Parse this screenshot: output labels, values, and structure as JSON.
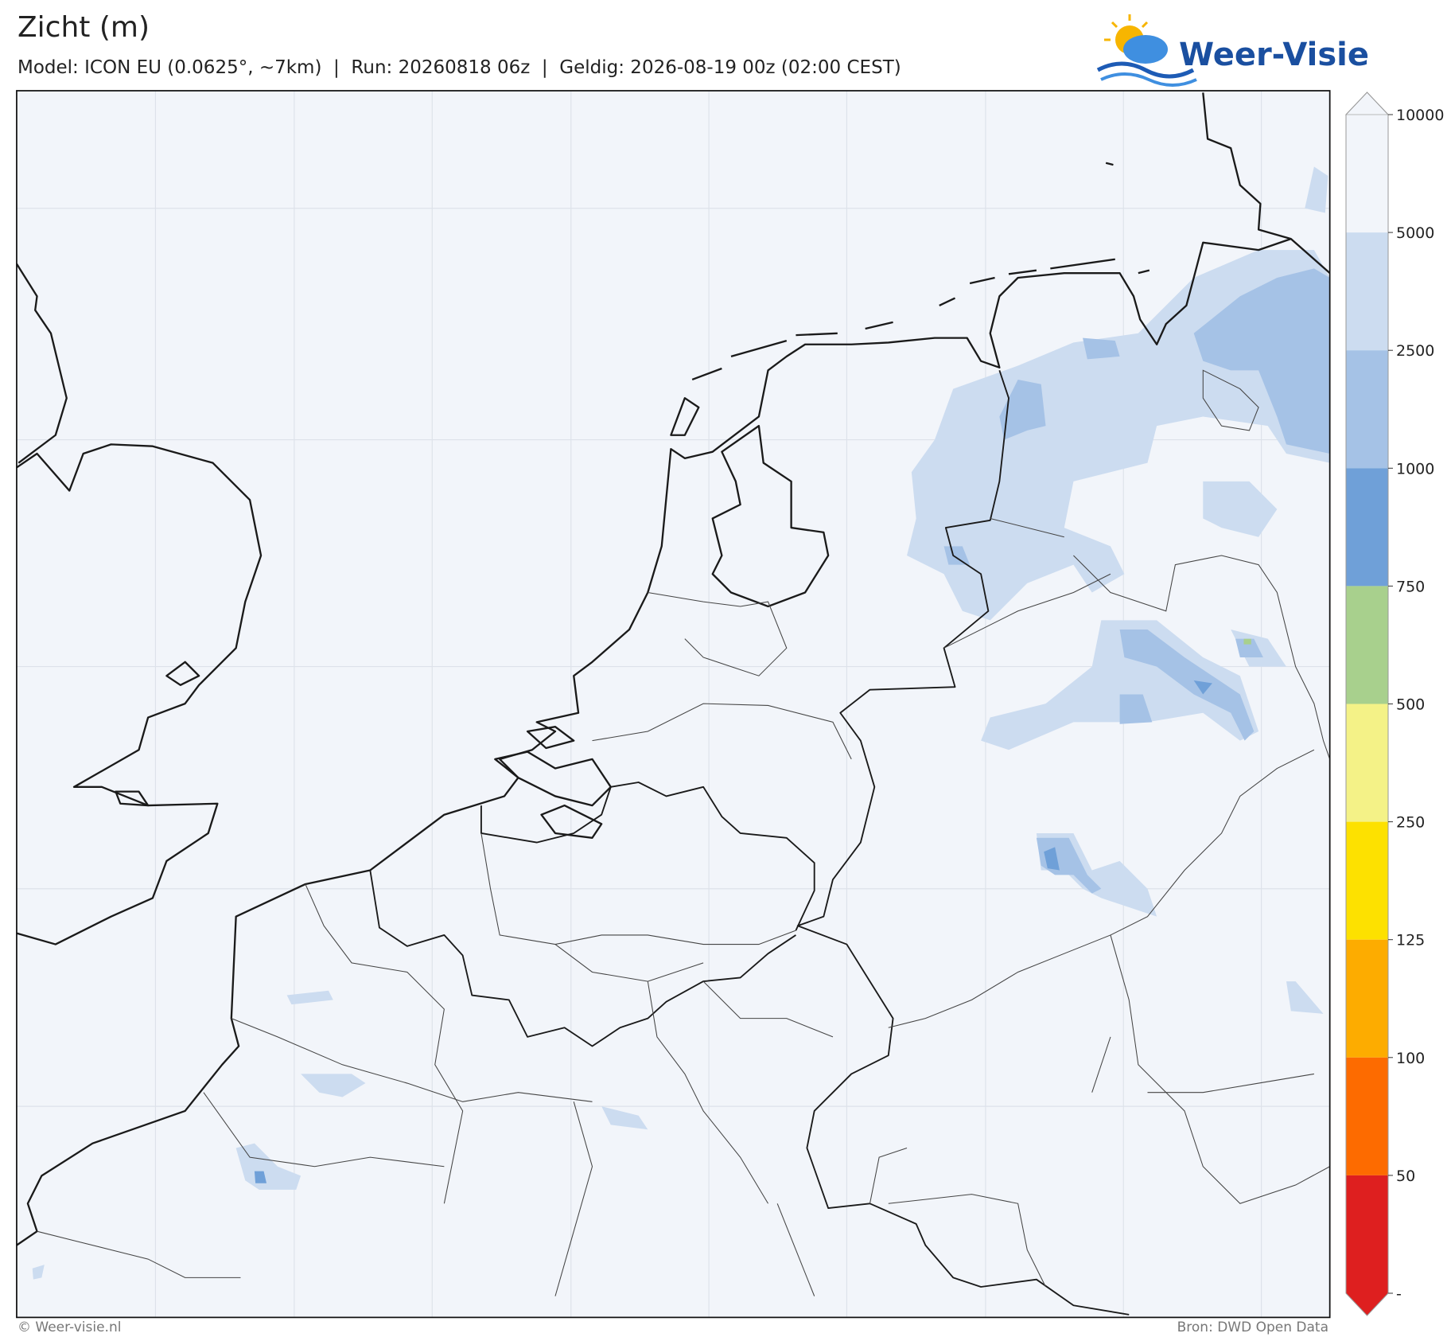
{
  "header": {
    "title": "Zicht (m)",
    "subtitle": "Model: ICON EU (0.0625°, ~7km)  |  Run: 20260818 06z  |  Geldig: 2026-08-19 00z (02:00 CEST)",
    "logo": "Weer-Visie"
  },
  "colorbar": {
    "ticks": [
      10000,
      5000,
      2500,
      1000,
      750,
      500,
      250,
      125,
      100,
      50,
      "-"
    ],
    "colors": [
      "#f2f5fa",
      "#ccdcf0",
      "#a5c2e6",
      "#6fa0d8",
      "#a8d08d",
      "#f4f287",
      "#fde100",
      "#fdac00",
      "#fd6b00",
      "#de1f1f"
    ]
  },
  "footer": {
    "left": "© Weer-visie.nl",
    "right": "Bron: DWD Open Data"
  }
}
